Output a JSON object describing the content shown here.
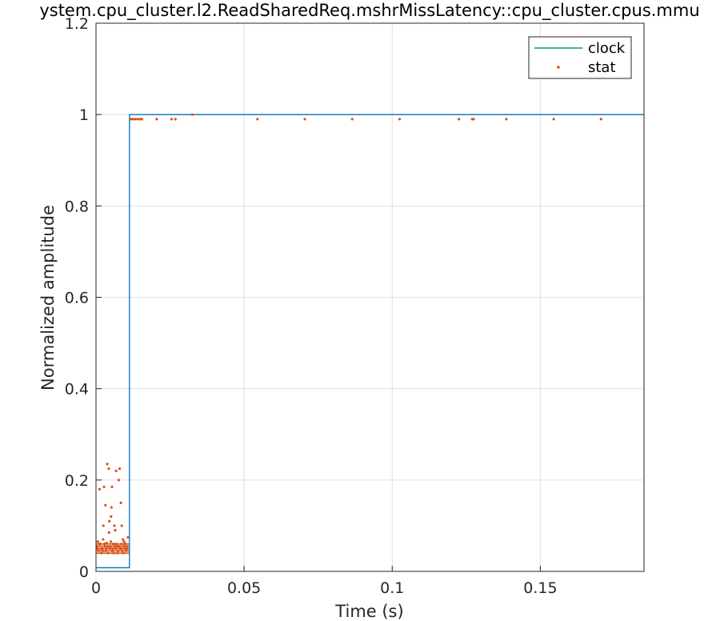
{
  "chart_data": {
    "type": "line",
    "title": "ystem.cpu_cluster.l2.ReadSharedReq.mshrMissLatency::cpu_cluster.cpus.mmu",
    "xlabel": "Time (s)",
    "ylabel": "Normalized amplitude",
    "xlim": [
      0,
      0.185
    ],
    "ylim": [
      0,
      1.2
    ],
    "x_ticks": [
      0,
      0.05,
      0.1,
      0.15
    ],
    "x_tick_labels": [
      "0",
      "0.05",
      "0.1",
      "0.15"
    ],
    "y_ticks": [
      0,
      0.2,
      0.4,
      0.6,
      0.8,
      1,
      1.2
    ],
    "y_tick_labels": [
      "0",
      "0.2",
      "0.4",
      "0.6",
      "0.8",
      "1",
      "1.2"
    ],
    "grid": true,
    "legend_position": "top-right",
    "colors": {
      "clock": "#0072BD",
      "clock_legend": "#009E73",
      "stat": "#D95319"
    },
    "series": [
      {
        "name": "clock",
        "kind": "line",
        "x": [
          0,
          0.0113,
          0.0113,
          0.185
        ],
        "y": [
          0.008,
          0.008,
          1.0,
          1.0
        ]
      },
      {
        "name": "stat",
        "kind": "scatter",
        "points": [
          [
            0.0003,
            0.055
          ],
          [
            0.0006,
            0.065
          ],
          [
            0.0009,
            0.045
          ],
          [
            0.0012,
            0.18
          ],
          [
            0.0015,
            0.06
          ],
          [
            0.0018,
            0.04
          ],
          [
            0.0021,
            0.05
          ],
          [
            0.0024,
            0.07
          ],
          [
            0.0027,
            0.185
          ],
          [
            0.003,
            0.055
          ],
          [
            0.0033,
            0.045
          ],
          [
            0.0036,
            0.062
          ],
          [
            0.0038,
            0.235
          ],
          [
            0.004,
            0.055
          ],
          [
            0.0043,
            0.225
          ],
          [
            0.0045,
            0.11
          ],
          [
            0.0047,
            0.05
          ],
          [
            0.005,
            0.065
          ],
          [
            0.0052,
            0.14
          ],
          [
            0.0054,
            0.185
          ],
          [
            0.0056,
            0.05
          ],
          [
            0.0058,
            0.06
          ],
          [
            0.006,
            0.04
          ],
          [
            0.0062,
            0.1
          ],
          [
            0.0064,
            0.055
          ],
          [
            0.0066,
            0.05
          ],
          [
            0.0068,
            0.22
          ],
          [
            0.007,
            0.06
          ],
          [
            0.0073,
            0.055
          ],
          [
            0.0075,
            0.045
          ],
          [
            0.0077,
            0.2
          ],
          [
            0.008,
            0.225
          ],
          [
            0.0082,
            0.05
          ],
          [
            0.0084,
            0.15
          ],
          [
            0.0086,
            0.06
          ],
          [
            0.0089,
            0.045
          ],
          [
            0.0091,
            0.07
          ],
          [
            0.0094,
            0.055
          ],
          [
            0.0097,
            0.05
          ],
          [
            0.0099,
            0.06
          ],
          [
            0.0102,
            0.045
          ],
          [
            0.0105,
            0.055
          ],
          [
            0.0108,
            0.075
          ],
          [
            0.0005,
            0.05
          ],
          [
            0.0011,
            0.06
          ],
          [
            0.0017,
            0.05
          ],
          [
            0.0023,
            0.045
          ],
          [
            0.0029,
            0.06
          ],
          [
            0.0035,
            0.05
          ],
          [
            0.0041,
            0.04
          ],
          [
            0.0049,
            0.055
          ],
          [
            0.0055,
            0.045
          ],
          [
            0.0061,
            0.06
          ],
          [
            0.0067,
            0.05
          ],
          [
            0.0072,
            0.04
          ],
          [
            0.0079,
            0.055
          ],
          [
            0.0085,
            0.05
          ],
          [
            0.0092,
            0.04
          ],
          [
            0.0098,
            0.06
          ],
          [
            0.0104,
            0.05
          ],
          [
            0.0044,
            0.085
          ],
          [
            0.0051,
            0.12
          ],
          [
            0.0065,
            0.09
          ],
          [
            0.0087,
            0.1
          ],
          [
            0.0095,
            0.065
          ],
          [
            0.0025,
            0.1
          ],
          [
            0.0032,
            0.145
          ],
          [
            0.0118,
            0.99
          ],
          [
            0.0125,
            0.99
          ],
          [
            0.0132,
            0.99
          ],
          [
            0.014,
            0.99
          ],
          [
            0.0148,
            0.99
          ],
          [
            0.0155,
            0.99
          ],
          [
            0.0205,
            0.99
          ],
          [
            0.0255,
            0.99
          ],
          [
            0.0268,
            0.99
          ],
          [
            0.0325,
            1.0
          ],
          [
            0.0545,
            0.99
          ],
          [
            0.0705,
            0.99
          ],
          [
            0.0865,
            0.99
          ],
          [
            0.1025,
            0.99
          ],
          [
            0.1225,
            0.99
          ],
          [
            0.127,
            0.99
          ],
          [
            0.1275,
            0.99
          ],
          [
            0.1385,
            0.99
          ],
          [
            0.1545,
            0.99
          ],
          [
            0.1705,
            0.99
          ]
        ]
      }
    ],
    "stat_bands": [
      0.04,
      0.045,
      0.05,
      0.055,
      0.06
    ]
  }
}
